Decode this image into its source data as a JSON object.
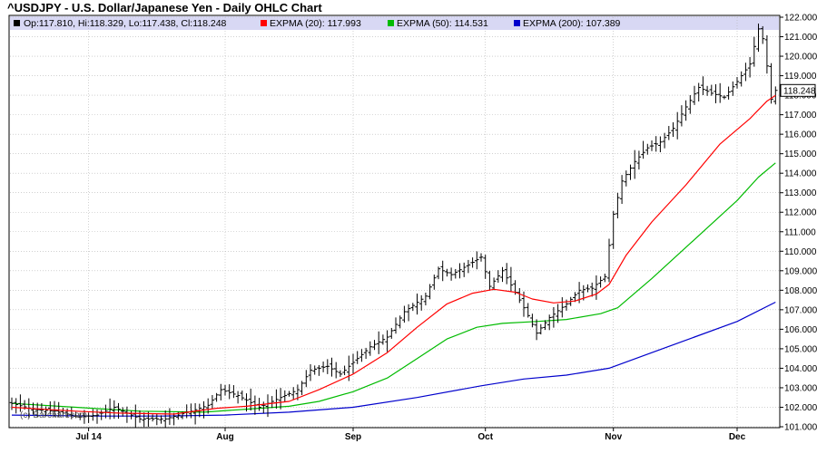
{
  "title": "^USDJPY - U.S. Dollar/Japanese Yen - Daily OHLC Chart",
  "watermark": "(c) Barchart.com",
  "colors": {
    "ohlc": "#000000",
    "ema20": "#ff0000",
    "ema50": "#00bb00",
    "ema200": "#0000cc",
    "legend_band": "#d8d8f4",
    "grid": "#b4b4b4"
  },
  "legend": [
    {
      "label": "Op:117.810, Hi:118.329, Lo:117.438, Cl:118.248",
      "color": "#000000"
    },
    {
      "label": "EXPMA (20): 117.993",
      "color": "#ff0000"
    },
    {
      "label": "EXPMA (50): 114.531",
      "color": "#00bb00"
    },
    {
      "label": "EXPMA (200): 107.389",
      "color": "#0000cc"
    }
  ],
  "last_price_label": "118.248",
  "chart_data": {
    "type": "ohlc",
    "title": "^USDJPY - U.S. Dollar/Japanese Yen - Daily OHLC Chart",
    "ylim": [
      101.0,
      122.0
    ],
    "y_ticks": [
      "101.000",
      "102.000",
      "103.000",
      "104.000",
      "105.000",
      "106.000",
      "107.000",
      "108.000",
      "109.000",
      "110.000",
      "111.000",
      "112.000",
      "113.000",
      "114.000",
      "115.000",
      "116.000",
      "117.000",
      "118.000",
      "119.000",
      "120.000",
      "121.000",
      "122.000"
    ],
    "x_ticks": [
      {
        "label": "Jul 14",
        "bar": 18
      },
      {
        "label": "Aug",
        "bar": 50
      },
      {
        "label": "Sep",
        "bar": 80
      },
      {
        "label": "Oct",
        "bar": 111
      },
      {
        "label": "Nov",
        "bar": 141
      },
      {
        "label": "Dec",
        "bar": 170
      }
    ],
    "grid": true,
    "bar_count": 180,
    "ohlc_anchors": [
      {
        "bar": 0,
        "close": 102.2
      },
      {
        "bar": 5,
        "close": 101.9
      },
      {
        "bar": 10,
        "close": 101.8
      },
      {
        "bar": 16,
        "close": 101.5
      },
      {
        "bar": 20,
        "close": 101.6
      },
      {
        "bar": 24,
        "close": 102.0
      },
      {
        "bar": 30,
        "close": 101.4
      },
      {
        "bar": 36,
        "close": 101.4
      },
      {
        "bar": 42,
        "close": 101.8
      },
      {
        "bar": 46,
        "close": 102.1
      },
      {
        "bar": 49,
        "close": 102.9
      },
      {
        "bar": 53,
        "close": 102.6
      },
      {
        "bar": 58,
        "close": 102.0
      },
      {
        "bar": 63,
        "close": 102.5
      },
      {
        "bar": 67,
        "close": 102.9
      },
      {
        "bar": 70,
        "close": 103.9
      },
      {
        "bar": 74,
        "close": 104.1
      },
      {
        "bar": 77,
        "close": 103.7
      },
      {
        "bar": 80,
        "close": 104.3
      },
      {
        "bar": 84,
        "close": 105.1
      },
      {
        "bar": 88,
        "close": 105.6
      },
      {
        "bar": 92,
        "close": 106.9
      },
      {
        "bar": 97,
        "close": 107.7
      },
      {
        "bar": 100,
        "close": 109.1
      },
      {
        "bar": 103,
        "close": 108.8
      },
      {
        "bar": 107,
        "close": 109.3
      },
      {
        "bar": 110,
        "close": 109.7
      },
      {
        "bar": 112,
        "close": 108.2
      },
      {
        "bar": 115,
        "close": 109.0
      },
      {
        "bar": 118,
        "close": 107.9
      },
      {
        "bar": 121,
        "close": 106.7
      },
      {
        "bar": 123,
        "close": 105.8
      },
      {
        "bar": 126,
        "close": 106.6
      },
      {
        "bar": 130,
        "close": 107.3
      },
      {
        "bar": 133,
        "close": 108.0
      },
      {
        "bar": 136,
        "close": 108.1
      },
      {
        "bar": 139,
        "close": 108.7
      },
      {
        "bar": 141,
        "close": 111.9
      },
      {
        "bar": 143,
        "close": 113.6
      },
      {
        "bar": 146,
        "close": 114.6
      },
      {
        "bar": 149,
        "close": 115.3
      },
      {
        "bar": 152,
        "close": 115.6
      },
      {
        "bar": 155,
        "close": 116.3
      },
      {
        "bar": 158,
        "close": 117.4
      },
      {
        "bar": 161,
        "close": 118.4
      },
      {
        "bar": 164,
        "close": 118.1
      },
      {
        "bar": 167,
        "close": 117.9
      },
      {
        "bar": 170,
        "close": 118.7
      },
      {
        "bar": 173,
        "close": 119.6
      },
      {
        "bar": 175,
        "close": 121.4
      },
      {
        "bar": 176,
        "close": 120.9
      },
      {
        "bar": 177,
        "close": 119.5
      },
      {
        "bar": 178,
        "close": 117.8
      },
      {
        "bar": 179,
        "close": 118.248
      }
    ],
    "series": [
      {
        "name": "EXPMA (20)",
        "color": "#ff0000",
        "points": [
          [
            0,
            102.0
          ],
          [
            15,
            101.8
          ],
          [
            25,
            101.7
          ],
          [
            38,
            101.65
          ],
          [
            48,
            101.95
          ],
          [
            55,
            102.05
          ],
          [
            65,
            102.3
          ],
          [
            72,
            102.9
          ],
          [
            80,
            103.7
          ],
          [
            88,
            104.8
          ],
          [
            95,
            106.1
          ],
          [
            102,
            107.3
          ],
          [
            108,
            107.85
          ],
          [
            113,
            108.05
          ],
          [
            118,
            107.9
          ],
          [
            122,
            107.55
          ],
          [
            127,
            107.35
          ],
          [
            132,
            107.45
          ],
          [
            137,
            107.8
          ],
          [
            140,
            108.3
          ],
          [
            144,
            109.8
          ],
          [
            150,
            111.5
          ],
          [
            158,
            113.4
          ],
          [
            166,
            115.5
          ],
          [
            173,
            116.8
          ],
          [
            177,
            117.7
          ],
          [
            179,
            117.993
          ]
        ]
      },
      {
        "name": "EXPMA (50)",
        "color": "#00bb00",
        "points": [
          [
            0,
            102.2
          ],
          [
            15,
            102.0
          ],
          [
            30,
            101.8
          ],
          [
            45,
            101.75
          ],
          [
            55,
            101.9
          ],
          [
            65,
            102.05
          ],
          [
            72,
            102.3
          ],
          [
            80,
            102.8
          ],
          [
            88,
            103.5
          ],
          [
            95,
            104.5
          ],
          [
            102,
            105.5
          ],
          [
            109,
            106.1
          ],
          [
            115,
            106.3
          ],
          [
            123,
            106.4
          ],
          [
            130,
            106.5
          ],
          [
            138,
            106.8
          ],
          [
            142,
            107.1
          ],
          [
            150,
            108.6
          ],
          [
            160,
            110.6
          ],
          [
            170,
            112.6
          ],
          [
            175,
            113.8
          ],
          [
            179,
            114.531
          ]
        ]
      },
      {
        "name": "EXPMA (200)",
        "color": "#0000cc",
        "points": [
          [
            0,
            101.6
          ],
          [
            20,
            101.55
          ],
          [
            35,
            101.55
          ],
          [
            50,
            101.6
          ],
          [
            65,
            101.75
          ],
          [
            80,
            102.0
          ],
          [
            95,
            102.5
          ],
          [
            110,
            103.1
          ],
          [
            120,
            103.45
          ],
          [
            130,
            103.65
          ],
          [
            140,
            104.0
          ],
          [
            150,
            104.8
          ],
          [
            160,
            105.6
          ],
          [
            170,
            106.4
          ],
          [
            179,
            107.389
          ]
        ]
      }
    ]
  }
}
